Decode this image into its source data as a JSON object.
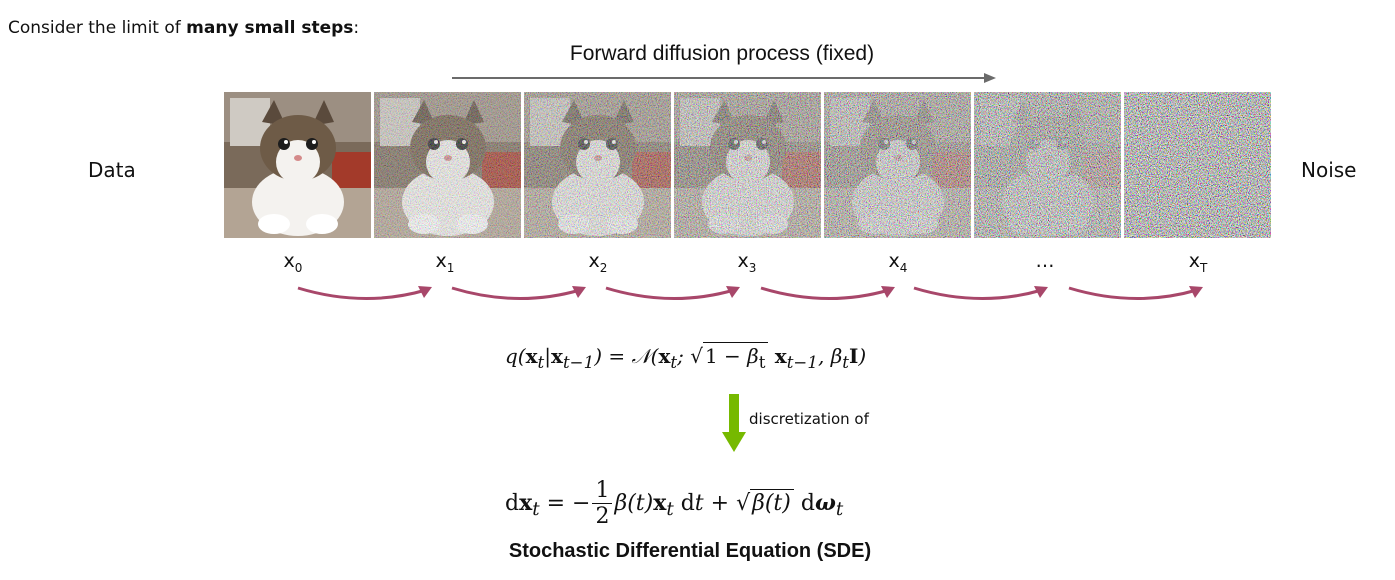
{
  "intro": {
    "prefix": "Consider the limit of ",
    "bold": "many small steps",
    "suffix": ":"
  },
  "process_title": "Forward diffusion process (fixed)",
  "left_label": "Data",
  "right_label": "Noise",
  "states": [
    {
      "base": "x",
      "sub": "0"
    },
    {
      "base": "x",
      "sub": "1"
    },
    {
      "base": "x",
      "sub": "2"
    },
    {
      "base": "x",
      "sub": "3"
    },
    {
      "base": "x",
      "sub": "4"
    },
    {
      "base": "…",
      "sub": ""
    },
    {
      "base": "x",
      "sub": "T"
    }
  ],
  "noise_levels": [
    0,
    0.35,
    0.5,
    0.62,
    0.74,
    0.88,
    1
  ],
  "colors": {
    "transition_arrow": "#a8476a",
    "discretization_arrow": "#76b900",
    "title_arrow": "#6b6b6b"
  },
  "discretization_label": "discretization of",
  "sde_label": "Stochastic Differential Equation (SDE)"
}
